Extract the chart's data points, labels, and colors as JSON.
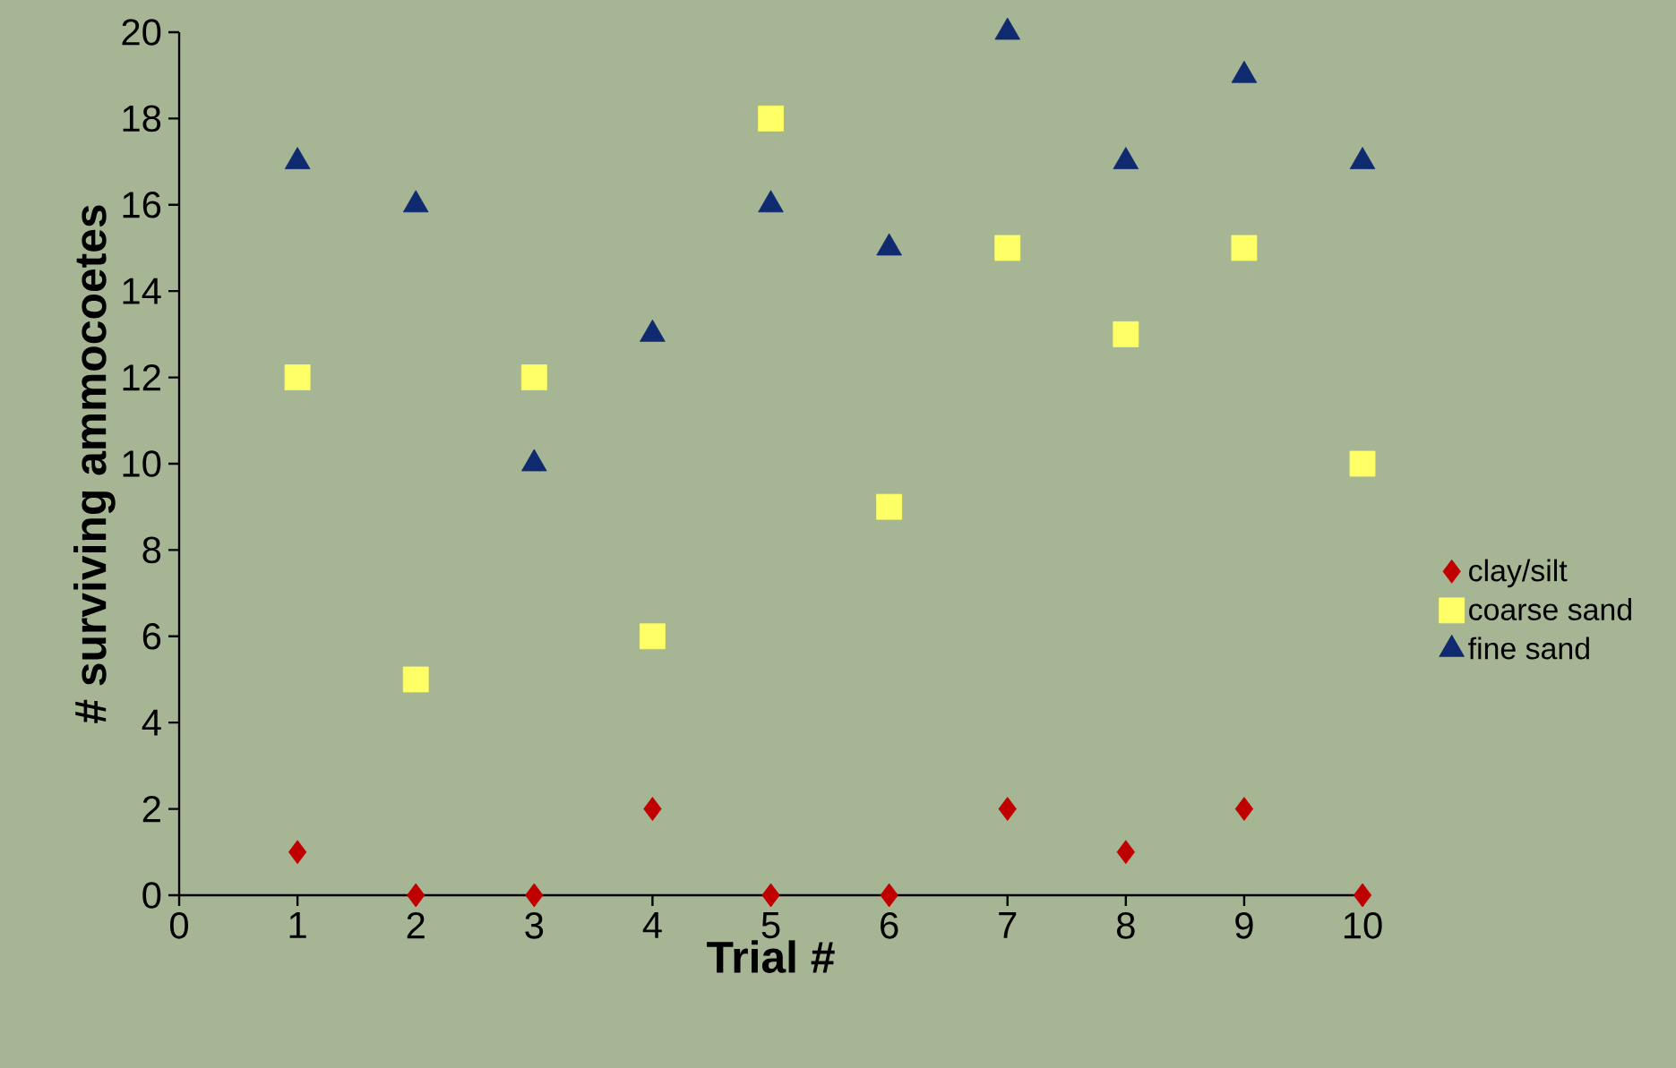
{
  "chart_data": {
    "type": "scatter",
    "xlabel": "Trial #",
    "ylabel": "# surviving ammocoetes",
    "x": [
      1,
      2,
      3,
      4,
      5,
      6,
      7,
      8,
      9,
      10
    ],
    "series": [
      {
        "name": "clay/silt",
        "color": "#c00000",
        "marker": "diamond",
        "values": [
          1,
          0,
          0,
          2,
          0,
          0,
          2,
          1,
          2,
          0
        ]
      },
      {
        "name": "coarse sand",
        "color": "#ffff66",
        "marker": "square",
        "values": [
          12,
          5,
          12,
          6,
          18,
          9,
          15,
          13,
          15,
          10
        ]
      },
      {
        "name": "fine sand",
        "color": "#0f2a6e",
        "marker": "triangle",
        "values": [
          17,
          16,
          10,
          13,
          16,
          15,
          20,
          17,
          19,
          17
        ]
      }
    ],
    "xlim": [
      0,
      10
    ],
    "ylim": [
      0,
      20
    ],
    "xticks": [
      0,
      1,
      2,
      3,
      4,
      5,
      6,
      7,
      8,
      9,
      10
    ],
    "yticks": [
      0,
      2,
      4,
      6,
      8,
      10,
      12,
      14,
      16,
      18,
      20
    ],
    "grid": false,
    "legend": "right"
  }
}
